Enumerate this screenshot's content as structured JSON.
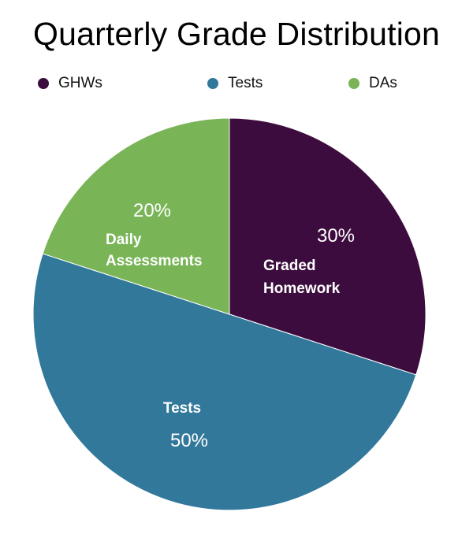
{
  "chart_data": {
    "type": "pie",
    "title": "Quarterly Grade Distribution",
    "legend_position": "top",
    "slices": [
      {
        "name": "GHWs",
        "value": 30,
        "label_pct": "30%",
        "label_text": [
          "Graded",
          "Homework"
        ],
        "color": "#3d0c3e"
      },
      {
        "name": "Tests",
        "value": 50,
        "label_pct": "50%",
        "label_text": [
          "Tests"
        ],
        "color": "#31789b"
      },
      {
        "name": "DAs",
        "value": 20,
        "label_pct": "20%",
        "label_text": [
          "Daily",
          "Assessments"
        ],
        "color": "#79b457"
      }
    ]
  }
}
